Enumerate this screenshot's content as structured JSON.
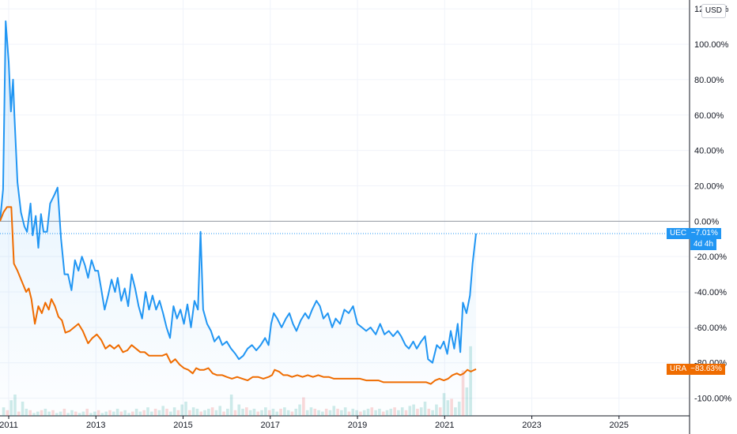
{
  "currency": "USD",
  "chart_data": {
    "type": "line",
    "y_unit": "%",
    "ylim": [
      -110,
      125
    ],
    "xlim": [
      2010.8,
      2026.6
    ],
    "y_ticks": [
      "120.00%",
      "100.00%",
      "80.00%",
      "60.00%",
      "40.00%",
      "20.00%",
      "0.00%",
      "-20.00%",
      "-40.00%",
      "-60.00%",
      "-80.00%",
      "-100.00%"
    ],
    "y_tick_values": [
      120,
      100,
      80,
      60,
      40,
      20,
      0,
      -20,
      -40,
      -60,
      -80,
      -100
    ],
    "x_ticks": [
      "2011",
      "2013",
      "2015",
      "2017",
      "2019",
      "2021",
      "2023",
      "2025"
    ],
    "x_tick_values": [
      2011,
      2013,
      2015,
      2017,
      2019,
      2021,
      2023,
      2025
    ],
    "grid": true,
    "series": [
      {
        "name": "UEC",
        "color": "#2196f3",
        "last_value_label": "−7.01%",
        "countdown": "4d 4h",
        "points": [
          [
            2010.8,
            0
          ],
          [
            2010.87,
            18
          ],
          [
            2010.93,
            113
          ],
          [
            2011.0,
            90
          ],
          [
            2011.05,
            62
          ],
          [
            2011.1,
            80
          ],
          [
            2011.13,
            60
          ],
          [
            2011.2,
            22
          ],
          [
            2011.28,
            5
          ],
          [
            2011.36,
            -3
          ],
          [
            2011.42,
            -6
          ],
          [
            2011.5,
            10
          ],
          [
            2011.55,
            -8
          ],
          [
            2011.62,
            3
          ],
          [
            2011.68,
            -15
          ],
          [
            2011.74,
            4
          ],
          [
            2011.8,
            -6
          ],
          [
            2011.88,
            -6
          ],
          [
            2011.95,
            10
          ],
          [
            2012.05,
            15
          ],
          [
            2012.12,
            19
          ],
          [
            2012.2,
            -10
          ],
          [
            2012.28,
            -30
          ],
          [
            2012.36,
            -30
          ],
          [
            2012.44,
            -39
          ],
          [
            2012.52,
            -22
          ],
          [
            2012.6,
            -28
          ],
          [
            2012.68,
            -20
          ],
          [
            2012.75,
            -25
          ],
          [
            2012.82,
            -32
          ],
          [
            2012.9,
            -22
          ],
          [
            2012.98,
            -28
          ],
          [
            2013.05,
            -28
          ],
          [
            2013.12,
            -38
          ],
          [
            2013.2,
            -50
          ],
          [
            2013.28,
            -42
          ],
          [
            2013.36,
            -33
          ],
          [
            2013.44,
            -40
          ],
          [
            2013.5,
            -32
          ],
          [
            2013.58,
            -45
          ],
          [
            2013.66,
            -38
          ],
          [
            2013.74,
            -48
          ],
          [
            2013.82,
            -30
          ],
          [
            2013.9,
            -38
          ],
          [
            2013.98,
            -48
          ],
          [
            2014.06,
            -55
          ],
          [
            2014.14,
            -40
          ],
          [
            2014.22,
            -50
          ],
          [
            2014.3,
            -42
          ],
          [
            2014.38,
            -50
          ],
          [
            2014.46,
            -45
          ],
          [
            2014.54,
            -52
          ],
          [
            2014.62,
            -60
          ],
          [
            2014.7,
            -66
          ],
          [
            2014.78,
            -48
          ],
          [
            2014.86,
            -55
          ],
          [
            2014.94,
            -50
          ],
          [
            2015.02,
            -58
          ],
          [
            2015.1,
            -47
          ],
          [
            2015.18,
            -60
          ],
          [
            2015.26,
            -45
          ],
          [
            2015.34,
            -50
          ],
          [
            2015.4,
            -6
          ],
          [
            2015.46,
            -50
          ],
          [
            2015.55,
            -58
          ],
          [
            2015.64,
            -62
          ],
          [
            2015.72,
            -68
          ],
          [
            2015.82,
            -65
          ],
          [
            2015.9,
            -70
          ],
          [
            2016.0,
            -68
          ],
          [
            2016.1,
            -72
          ],
          [
            2016.2,
            -75
          ],
          [
            2016.28,
            -78
          ],
          [
            2016.38,
            -76
          ],
          [
            2016.48,
            -72
          ],
          [
            2016.58,
            -70
          ],
          [
            2016.68,
            -73
          ],
          [
            2016.78,
            -70
          ],
          [
            2016.88,
            -66
          ],
          [
            2016.96,
            -70
          ],
          [
            2017.02,
            -58
          ],
          [
            2017.08,
            -52
          ],
          [
            2017.16,
            -55
          ],
          [
            2017.26,
            -60
          ],
          [
            2017.36,
            -55
          ],
          [
            2017.44,
            -52
          ],
          [
            2017.52,
            -58
          ],
          [
            2017.6,
            -62
          ],
          [
            2017.7,
            -56
          ],
          [
            2017.8,
            -52
          ],
          [
            2017.88,
            -55
          ],
          [
            2017.96,
            -50
          ],
          [
            2018.06,
            -45
          ],
          [
            2018.14,
            -48
          ],
          [
            2018.22,
            -55
          ],
          [
            2018.32,
            -52
          ],
          [
            2018.42,
            -60
          ],
          [
            2018.5,
            -55
          ],
          [
            2018.6,
            -58
          ],
          [
            2018.7,
            -50
          ],
          [
            2018.8,
            -52
          ],
          [
            2018.9,
            -48
          ],
          [
            2019.0,
            -58
          ],
          [
            2019.1,
            -60
          ],
          [
            2019.2,
            -62
          ],
          [
            2019.3,
            -60
          ],
          [
            2019.42,
            -64
          ],
          [
            2019.52,
            -58
          ],
          [
            2019.62,
            -64
          ],
          [
            2019.72,
            -62
          ],
          [
            2019.82,
            -65
          ],
          [
            2019.92,
            -62
          ],
          [
            2020.0,
            -65
          ],
          [
            2020.1,
            -70
          ],
          [
            2020.18,
            -72
          ],
          [
            2020.28,
            -68
          ],
          [
            2020.36,
            -72
          ],
          [
            2020.46,
            -68
          ],
          [
            2020.55,
            -65
          ],
          [
            2020.62,
            -78
          ],
          [
            2020.72,
            -80
          ],
          [
            2020.82,
            -70
          ],
          [
            2020.9,
            -72
          ],
          [
            2020.98,
            -68
          ],
          [
            2021.06,
            -75
          ],
          [
            2021.14,
            -62
          ],
          [
            2021.22,
            -72
          ],
          [
            2021.3,
            -58
          ],
          [
            2021.36,
            -74
          ],
          [
            2021.42,
            -46
          ],
          [
            2021.5,
            -52
          ],
          [
            2021.58,
            -42
          ],
          [
            2021.64,
            -24
          ],
          [
            2021.72,
            -7
          ]
        ]
      },
      {
        "name": "URA",
        "color": "#ef6c00",
        "last_value_label": "−83.63%",
        "points": [
          [
            2010.8,
            0
          ],
          [
            2010.88,
            5
          ],
          [
            2010.96,
            8
          ],
          [
            2011.06,
            8
          ],
          [
            2011.12,
            -24
          ],
          [
            2011.2,
            -28
          ],
          [
            2011.3,
            -34
          ],
          [
            2011.4,
            -40
          ],
          [
            2011.46,
            -38
          ],
          [
            2011.52,
            -44
          ],
          [
            2011.6,
            -58
          ],
          [
            2011.68,
            -48
          ],
          [
            2011.76,
            -52
          ],
          [
            2011.84,
            -46
          ],
          [
            2011.92,
            -50
          ],
          [
            2011.98,
            -44
          ],
          [
            2012.06,
            -48
          ],
          [
            2012.14,
            -54
          ],
          [
            2012.22,
            -56
          ],
          [
            2012.3,
            -63
          ],
          [
            2012.4,
            -62
          ],
          [
            2012.5,
            -60
          ],
          [
            2012.6,
            -58
          ],
          [
            2012.7,
            -62
          ],
          [
            2012.82,
            -69
          ],
          [
            2012.92,
            -66
          ],
          [
            2013.02,
            -64
          ],
          [
            2013.12,
            -67
          ],
          [
            2013.22,
            -72
          ],
          [
            2013.32,
            -70
          ],
          [
            2013.42,
            -72
          ],
          [
            2013.52,
            -70
          ],
          [
            2013.62,
            -74
          ],
          [
            2013.72,
            -73
          ],
          [
            2013.82,
            -70
          ],
          [
            2013.92,
            -72
          ],
          [
            2014.02,
            -74
          ],
          [
            2014.12,
            -74
          ],
          [
            2014.22,
            -76
          ],
          [
            2014.32,
            -76
          ],
          [
            2014.42,
            -76
          ],
          [
            2014.52,
            -76
          ],
          [
            2014.62,
            -75
          ],
          [
            2014.72,
            -80
          ],
          [
            2014.82,
            -78
          ],
          [
            2014.92,
            -81
          ],
          [
            2015.02,
            -83
          ],
          [
            2015.12,
            -84
          ],
          [
            2015.22,
            -86
          ],
          [
            2015.3,
            -83
          ],
          [
            2015.38,
            -84
          ],
          [
            2015.48,
            -84
          ],
          [
            2015.58,
            -83
          ],
          [
            2015.68,
            -86
          ],
          [
            2015.78,
            -87
          ],
          [
            2015.9,
            -87
          ],
          [
            2016.0,
            -88
          ],
          [
            2016.12,
            -89
          ],
          [
            2016.24,
            -88
          ],
          [
            2016.36,
            -89
          ],
          [
            2016.48,
            -90
          ],
          [
            2016.6,
            -88
          ],
          [
            2016.72,
            -88
          ],
          [
            2016.84,
            -89
          ],
          [
            2016.96,
            -88
          ],
          [
            2017.04,
            -87
          ],
          [
            2017.1,
            -84
          ],
          [
            2017.2,
            -85
          ],
          [
            2017.3,
            -87
          ],
          [
            2017.4,
            -87
          ],
          [
            2017.5,
            -88
          ],
          [
            2017.62,
            -87
          ],
          [
            2017.74,
            -88
          ],
          [
            2017.86,
            -87
          ],
          [
            2017.98,
            -88
          ],
          [
            2018.1,
            -87
          ],
          [
            2018.22,
            -88
          ],
          [
            2018.34,
            -88
          ],
          [
            2018.46,
            -89
          ],
          [
            2018.58,
            -89
          ],
          [
            2018.7,
            -89
          ],
          [
            2018.82,
            -89
          ],
          [
            2018.94,
            -89
          ],
          [
            2019.06,
            -89
          ],
          [
            2019.2,
            -90
          ],
          [
            2019.34,
            -90
          ],
          [
            2019.48,
            -90
          ],
          [
            2019.6,
            -91
          ],
          [
            2019.74,
            -91
          ],
          [
            2019.88,
            -91
          ],
          [
            2020.0,
            -91
          ],
          [
            2020.14,
            -91
          ],
          [
            2020.3,
            -91
          ],
          [
            2020.44,
            -91
          ],
          [
            2020.58,
            -91
          ],
          [
            2020.68,
            -92
          ],
          [
            2020.78,
            -90
          ],
          [
            2020.88,
            -89
          ],
          [
            2020.98,
            -90
          ],
          [
            2021.08,
            -89
          ],
          [
            2021.18,
            -87
          ],
          [
            2021.28,
            -86
          ],
          [
            2021.36,
            -87
          ],
          [
            2021.44,
            -86
          ],
          [
            2021.52,
            -84
          ],
          [
            2021.6,
            -85
          ],
          [
            2021.72,
            -83.6
          ]
        ]
      }
    ],
    "volume": {
      "note": "relative volume bars at bottom",
      "values": [
        6,
        4,
        11,
        15,
        3,
        10,
        5,
        4,
        2,
        3,
        4,
        5,
        3,
        4,
        2,
        3,
        5,
        2,
        4,
        3,
        2,
        3,
        5,
        2,
        3,
        4,
        2,
        3,
        4,
        3,
        5,
        3,
        4,
        2,
        3,
        5,
        3,
        4,
        6,
        3,
        5,
        4,
        7,
        5,
        3,
        6,
        4,
        8,
        10,
        4,
        6,
        5,
        3,
        4,
        5,
        6,
        4,
        7,
        3,
        5,
        15,
        4,
        8,
        5,
        6,
        4,
        5,
        3,
        4,
        6,
        4,
        5,
        3,
        5,
        6,
        4,
        3,
        5,
        8,
        13,
        4,
        6,
        5,
        4,
        3,
        5,
        4,
        7,
        5,
        4,
        6,
        3,
        5,
        4,
        3,
        4,
        5,
        6,
        4,
        5,
        3,
        4,
        5,
        6,
        4,
        6,
        4,
        7,
        8,
        5,
        6,
        10,
        5,
        4,
        8,
        6,
        16,
        11,
        12,
        6,
        10,
        32,
        20,
        49
      ]
    }
  }
}
